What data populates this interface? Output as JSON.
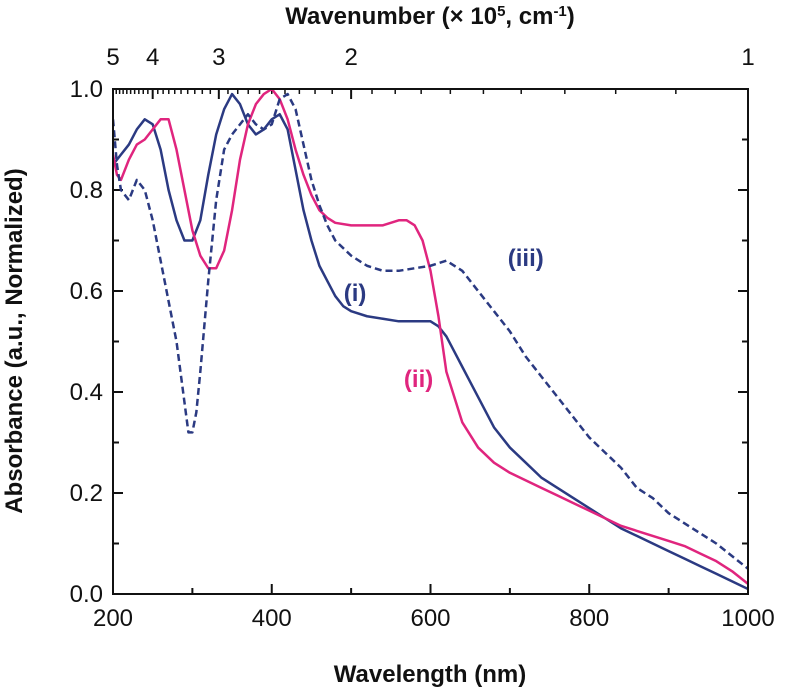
{
  "chart_data": {
    "type": "line",
    "xlabel": "Wavelength (nm)",
    "ylabel": "Absorbance (a.u., Normalized)",
    "top_axis": {
      "label_prefix": "Wavenumber (× 10",
      "label_sup1": "5",
      "label_mid": ", cm",
      "label_sup2": "-1",
      "label_suffix": ")",
      "ticks": [
        {
          "label": "5",
          "value": 5
        },
        {
          "label": "4",
          "value": 4
        },
        {
          "label": "3",
          "value": 3
        },
        {
          "label": "2",
          "value": 2
        },
        {
          "label": "1",
          "value": 1
        }
      ]
    },
    "xlim": [
      200,
      1000
    ],
    "ylim": [
      0.0,
      1.0
    ],
    "xticks": [
      200,
      400,
      600,
      800,
      1000
    ],
    "yticks": [
      0.0,
      0.2,
      0.4,
      0.6,
      0.8,
      1.0
    ],
    "xtick_labels": [
      "200",
      "400",
      "600",
      "800",
      "1000"
    ],
    "ytick_labels": [
      "0.0",
      "0.2",
      "0.4",
      "0.6",
      "0.8",
      "1.0"
    ],
    "colors": {
      "navy": "#2b3a82",
      "magenta": "#e0257e",
      "axis": "#111111"
    },
    "series": [
      {
        "name": "(i)",
        "color": "#2b3a82",
        "style": "solid",
        "x": [
          200,
          210,
          220,
          230,
          240,
          250,
          260,
          270,
          280,
          290,
          300,
          310,
          320,
          330,
          340,
          350,
          360,
          370,
          380,
          390,
          400,
          410,
          420,
          430,
          440,
          450,
          460,
          470,
          480,
          490,
          500,
          520,
          540,
          560,
          580,
          600,
          610,
          620,
          630,
          640,
          650,
          660,
          670,
          680,
          700,
          720,
          740,
          760,
          780,
          800,
          820,
          840,
          860,
          880,
          900,
          920,
          940,
          960,
          980,
          1000
        ],
        "values": [
          0.85,
          0.87,
          0.89,
          0.92,
          0.94,
          0.93,
          0.88,
          0.8,
          0.74,
          0.7,
          0.7,
          0.74,
          0.83,
          0.91,
          0.96,
          0.99,
          0.97,
          0.93,
          0.91,
          0.92,
          0.94,
          0.95,
          0.92,
          0.84,
          0.76,
          0.7,
          0.65,
          0.62,
          0.59,
          0.57,
          0.56,
          0.55,
          0.545,
          0.54,
          0.54,
          0.54,
          0.53,
          0.51,
          0.48,
          0.45,
          0.42,
          0.39,
          0.36,
          0.33,
          0.29,
          0.26,
          0.23,
          0.21,
          0.19,
          0.17,
          0.15,
          0.13,
          0.115,
          0.1,
          0.085,
          0.07,
          0.055,
          0.04,
          0.025,
          0.01
        ]
      },
      {
        "name": "(ii)",
        "color": "#e0257e",
        "style": "solid",
        "x": [
          200,
          205,
          210,
          220,
          230,
          240,
          250,
          260,
          270,
          280,
          290,
          300,
          310,
          320,
          330,
          340,
          350,
          360,
          370,
          380,
          390,
          400,
          410,
          420,
          430,
          440,
          450,
          460,
          470,
          480,
          500,
          520,
          540,
          560,
          570,
          580,
          590,
          600,
          610,
          620,
          640,
          660,
          680,
          700,
          720,
          740,
          760,
          780,
          800,
          820,
          840,
          860,
          880,
          900,
          920,
          940,
          960,
          980,
          1000
        ],
        "values": [
          0.87,
          0.83,
          0.82,
          0.86,
          0.89,
          0.9,
          0.92,
          0.94,
          0.94,
          0.88,
          0.8,
          0.72,
          0.67,
          0.645,
          0.645,
          0.68,
          0.76,
          0.86,
          0.93,
          0.97,
          0.99,
          1.0,
          0.98,
          0.94,
          0.88,
          0.83,
          0.79,
          0.76,
          0.745,
          0.735,
          0.73,
          0.73,
          0.73,
          0.74,
          0.74,
          0.73,
          0.7,
          0.64,
          0.55,
          0.44,
          0.34,
          0.29,
          0.26,
          0.24,
          0.225,
          0.21,
          0.195,
          0.18,
          0.165,
          0.15,
          0.135,
          0.125,
          0.115,
          0.105,
          0.095,
          0.08,
          0.065,
          0.045,
          0.02
        ]
      },
      {
        "name": "(iii)",
        "color": "#2b3a82",
        "style": "dashed",
        "x": [
          200,
          205,
          210,
          220,
          230,
          240,
          250,
          260,
          270,
          280,
          290,
          295,
          300,
          305,
          310,
          320,
          330,
          340,
          350,
          360,
          370,
          380,
          390,
          400,
          410,
          420,
          430,
          440,
          450,
          460,
          470,
          480,
          500,
          520,
          540,
          560,
          580,
          600,
          620,
          640,
          660,
          680,
          700,
          720,
          740,
          760,
          780,
          800,
          820,
          840,
          860,
          880,
          900,
          920,
          940,
          960,
          980,
          1000
        ],
        "values": [
          0.94,
          0.85,
          0.8,
          0.78,
          0.82,
          0.8,
          0.74,
          0.66,
          0.58,
          0.5,
          0.38,
          0.32,
          0.32,
          0.36,
          0.44,
          0.62,
          0.78,
          0.88,
          0.91,
          0.93,
          0.95,
          0.93,
          0.92,
          0.93,
          0.98,
          0.99,
          0.96,
          0.89,
          0.82,
          0.77,
          0.73,
          0.7,
          0.67,
          0.65,
          0.64,
          0.64,
          0.645,
          0.65,
          0.66,
          0.64,
          0.6,
          0.56,
          0.52,
          0.47,
          0.43,
          0.39,
          0.35,
          0.31,
          0.28,
          0.25,
          0.21,
          0.19,
          0.16,
          0.14,
          0.12,
          0.1,
          0.075,
          0.05
        ]
      }
    ],
    "annotations": [
      {
        "text": "(i)",
        "x": 505,
        "y": 0.58,
        "color": "#2b3a82"
      },
      {
        "text": "(ii)",
        "x": 585,
        "y": 0.41,
        "color": "#e0257e"
      },
      {
        "text": "(iii)",
        "x": 720,
        "y": 0.65,
        "color": "#2b3a82"
      }
    ]
  }
}
